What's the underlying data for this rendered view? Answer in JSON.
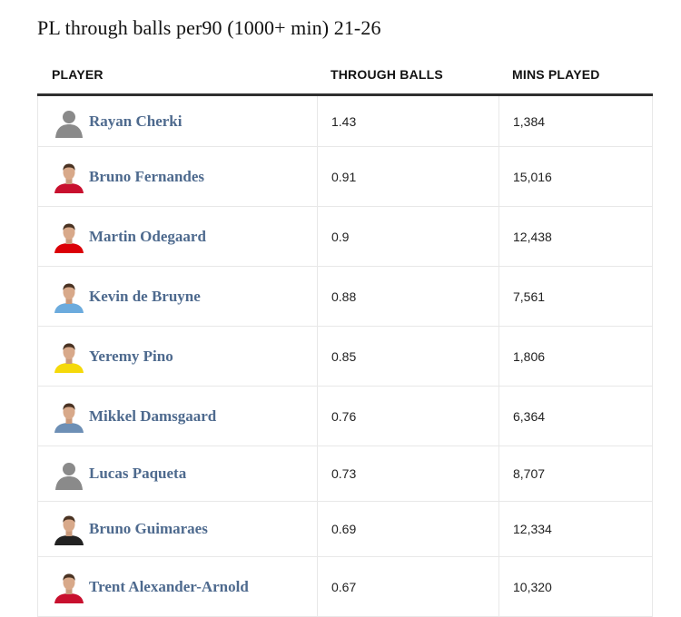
{
  "title": "PL through balls per90 (1000+ min) 21-26",
  "columns": {
    "player": "PLAYER",
    "through_balls": "THROUGH BALLS",
    "mins_played": "MINS PLAYED"
  },
  "rows": [
    {
      "player": "Rayan Cherki",
      "through_balls": "1.43",
      "mins_played": "1,384",
      "avatar": "placeholder-silhouette",
      "shirt": "#8a8a8a"
    },
    {
      "player": "Bruno Fernandes",
      "through_balls": "0.91",
      "mins_played": "15,016",
      "avatar": "headshot",
      "shirt": "#c8102e"
    },
    {
      "player": "Martin Odegaard",
      "through_balls": "0.9",
      "mins_played": "12,438",
      "avatar": "headshot",
      "shirt": "#db0007"
    },
    {
      "player": "Kevin de Bruyne",
      "through_balls": "0.88",
      "mins_played": "7,561",
      "avatar": "headshot",
      "shirt": "#6cabdd"
    },
    {
      "player": "Yeremy Pino",
      "through_balls": "0.85",
      "mins_played": "1,806",
      "avatar": "headshot",
      "shirt": "#f5d90a"
    },
    {
      "player": "Mikkel Damsgaard",
      "through_balls": "0.76",
      "mins_played": "6,364",
      "avatar": "headshot",
      "shirt": "#6d8fb5"
    },
    {
      "player": "Lucas Paqueta",
      "through_balls": "0.73",
      "mins_played": "8,707",
      "avatar": "placeholder-silhouette",
      "shirt": "#8a8a8a"
    },
    {
      "player": "Bruno Guimaraes",
      "through_balls": "0.69",
      "mins_played": "12,334",
      "avatar": "headshot",
      "shirt": "#222222"
    },
    {
      "player": "Trent Alexander-Arnold",
      "through_balls": "0.67",
      "mins_played": "10,320",
      "avatar": "headshot",
      "shirt": "#c8102e"
    }
  ]
}
